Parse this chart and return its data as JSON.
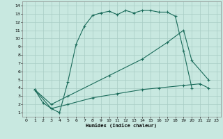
{
  "xlabel": "Humidex (Indice chaleur)",
  "xlim": [
    -0.5,
    23.5
  ],
  "ylim": [
    0.5,
    14.5
  ],
  "xticks": [
    0,
    1,
    2,
    3,
    4,
    5,
    6,
    7,
    8,
    9,
    10,
    11,
    12,
    13,
    14,
    15,
    16,
    17,
    18,
    19,
    20,
    21,
    22,
    23
  ],
  "yticks": [
    1,
    2,
    3,
    4,
    5,
    6,
    7,
    8,
    9,
    10,
    11,
    12,
    13,
    14
  ],
  "bg_color": "#c8e8e0",
  "grid_color": "#a8ccc4",
  "line_color": "#1a6b5a",
  "curve1_x": [
    1,
    2,
    3,
    4,
    5,
    6,
    7,
    8,
    9,
    10,
    11,
    12,
    13,
    14,
    15,
    16,
    17,
    18,
    19,
    20
  ],
  "curve1_y": [
    3.8,
    2.2,
    1.5,
    1.0,
    4.7,
    9.3,
    11.5,
    12.8,
    13.1,
    13.3,
    12.9,
    13.4,
    13.1,
    13.4,
    13.4,
    13.2,
    13.2,
    12.7,
    8.5,
    4.0
  ],
  "curve2_x": [
    1,
    3,
    5,
    10,
    14,
    17,
    19,
    20,
    22
  ],
  "curve2_y": [
    3.8,
    2.0,
    3.0,
    5.5,
    7.5,
    9.5,
    11.0,
    7.3,
    5.0
  ],
  "curve3_x": [
    1,
    3,
    5,
    8,
    11,
    14,
    16,
    19,
    21,
    22
  ],
  "curve3_y": [
    3.8,
    1.5,
    2.0,
    2.8,
    3.3,
    3.8,
    4.0,
    4.3,
    4.5,
    4.0
  ]
}
